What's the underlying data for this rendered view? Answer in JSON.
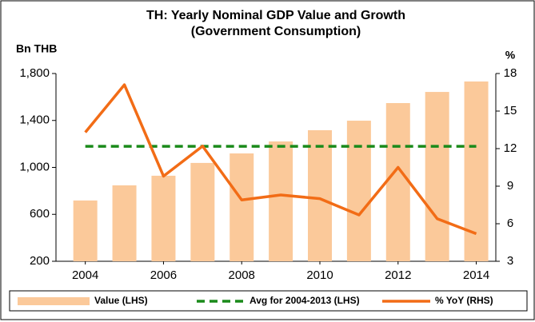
{
  "chart_data": {
    "type": "bar_line",
    "title": "TH: Yearly Nominal GDP Value and Growth",
    "subtitle": "(Government Consumption)",
    "y_label": "Bn THB",
    "y2_label": "%",
    "x": [
      2004,
      2005,
      2006,
      2007,
      2008,
      2009,
      2010,
      2011,
      2012,
      2013,
      2014
    ],
    "xlim": [
      2003.25,
      2014.5
    ],
    "xticks": [
      2004,
      2006,
      2008,
      2010,
      2012,
      2014
    ],
    "ylim": [
      200,
      1800
    ],
    "yticks": [
      {
        "value": 200,
        "label": "200"
      },
      {
        "value": 600,
        "label": "600"
      },
      {
        "value": 1000,
        "label": "1,000"
      },
      {
        "value": 1400,
        "label": "1,400"
      },
      {
        "value": 1800,
        "label": "1,800"
      }
    ],
    "y2lim": [
      3,
      18
    ],
    "y2ticks": [
      3,
      6,
      9,
      12,
      15,
      18
    ],
    "series": [
      {
        "name": "Value (LHS)",
        "kind": "bar",
        "color": "#fbc99a",
        "values": [
          718,
          847,
          929,
          1038,
          1119,
          1221,
          1317,
          1398,
          1548,
          1643,
          1732
        ]
      },
      {
        "name": "Avg for 2004-2013 (LHS)",
        "kind": "dashed",
        "color": "#1a8a1a",
        "values": [
          1180,
          1180,
          1180,
          1180,
          1180,
          1180,
          1180,
          1180,
          1180,
          1180,
          1180
        ]
      },
      {
        "name": "% YoY (RHS)",
        "kind": "line",
        "color": "#f26c16",
        "axis": "y2",
        "values": [
          13.3,
          17.1,
          9.8,
          12.2,
          7.9,
          8.3,
          8.0,
          6.7,
          10.5,
          6.4,
          5.2
        ]
      }
    ]
  }
}
